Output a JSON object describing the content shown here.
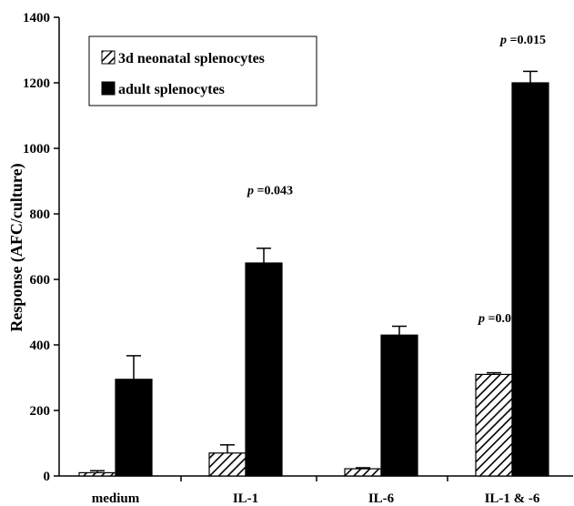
{
  "chart_data": {
    "type": "bar",
    "title": "",
    "xlabel": "",
    "ylabel": "Response (AFC/culture)",
    "ylim": [
      0,
      1400
    ],
    "yticks": [
      0,
      200,
      400,
      600,
      800,
      1000,
      1200,
      1400
    ],
    "categories": [
      "medium",
      "IL-1",
      "IL-6",
      "IL-1 & -6"
    ],
    "series": [
      {
        "name": "3d neonatal splenocytes",
        "pattern": "hatched",
        "values": [
          10,
          70,
          22,
          310
        ],
        "errors": [
          6,
          25,
          3,
          5
        ]
      },
      {
        "name": "adult splenocytes",
        "pattern": "solid",
        "values": [
          295,
          650,
          430,
          1200
        ],
        "errors": [
          72,
          45,
          27,
          35
        ]
      }
    ],
    "legend_position": "top-left",
    "grid": false,
    "annotations": [
      {
        "italic": "p",
        "text": " =0.043",
        "category": "IL-1",
        "y": 860
      },
      {
        "italic": "p",
        "text": " =0.001",
        "category": "IL-1 & -6",
        "y": 470
      },
      {
        "italic": "p",
        "text": " =0.015",
        "category": "IL-1 & -6",
        "y": 1320
      }
    ],
    "colors": {
      "bar": "#000000",
      "hatch": "#000000",
      "background": "#ffffff"
    }
  }
}
